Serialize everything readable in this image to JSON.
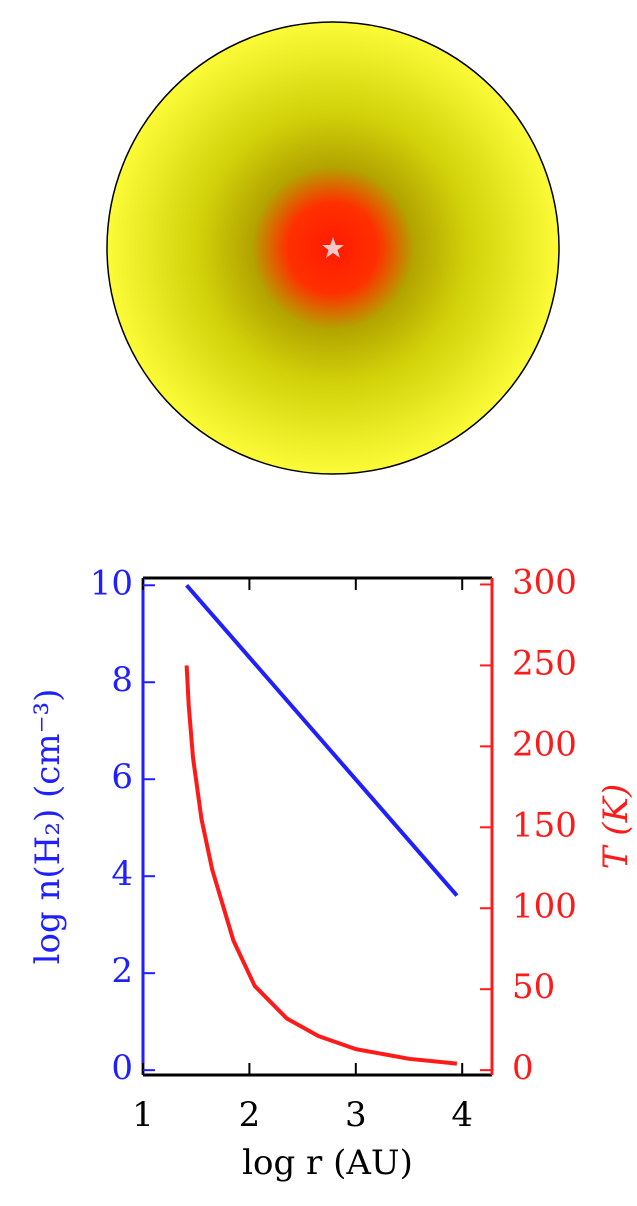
{
  "chart_data": {
    "type": "line",
    "x_label": "log r (AU)",
    "y_label": "log n(H₂) (cm⁻³)",
    "y2_label": "T (K)",
    "xlim": [
      1,
      4.28
    ],
    "xticks": [
      1,
      2,
      3,
      4
    ],
    "ylim": [
      -0.1,
      10.15
    ],
    "yticks": [
      0,
      2,
      4,
      6,
      8,
      10
    ],
    "y2lim": [
      -3,
      304
    ],
    "y2ticks": [
      0,
      50,
      100,
      150,
      200,
      250,
      300
    ],
    "series": [
      {
        "name": "log n(H₂)",
        "color": "#1f1fff",
        "axis": "y",
        "x": [
          1.41,
          3.95
        ],
        "values": [
          10,
          3.6
        ]
      },
      {
        "name": "T",
        "color": "#ff1a1a",
        "axis": "y2",
        "x": [
          1.41,
          1.43,
          1.47,
          1.55,
          1.65,
          1.85,
          2.05,
          2.35,
          2.65,
          3.0,
          3.5,
          3.95
        ],
        "values": [
          250,
          225,
          193,
          155,
          124,
          80,
          52,
          32,
          21,
          13,
          7,
          4
        ]
      }
    ]
  }
}
